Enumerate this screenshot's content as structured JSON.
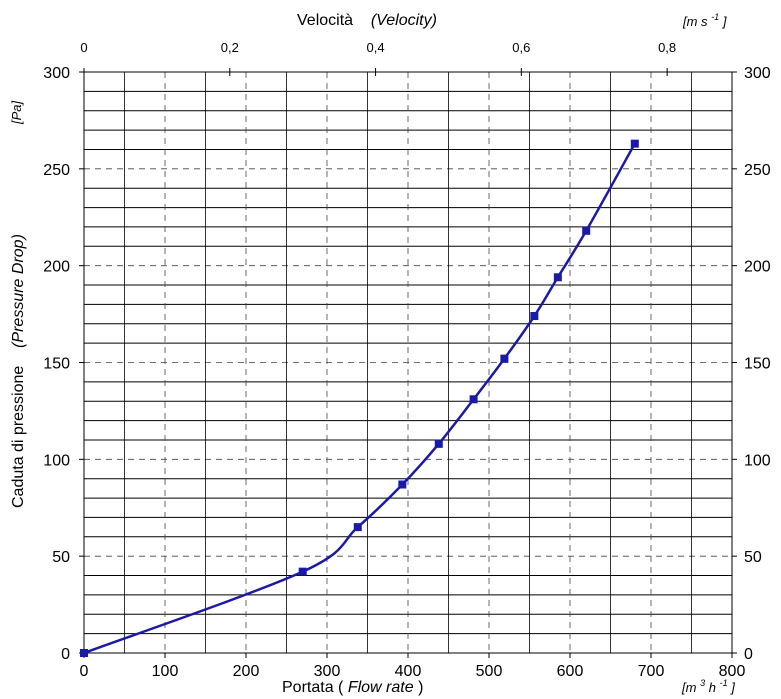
{
  "chart_data": {
    "type": "scatter",
    "title": "",
    "top_axis": {
      "label_plain": "Velocità",
      "label_italic": "(Velocity)",
      "unit": "[m s",
      "unit_exp": "-1",
      "unit_close": "]",
      "ticks": [
        0,
        0.2,
        0.4,
        0.6,
        0.8
      ],
      "tick_labels": [
        "0",
        "0,2",
        "0,4",
        "0,6",
        "0,8"
      ],
      "range": [
        0,
        0.889
      ]
    },
    "bottom_axis": {
      "label_plain": "Portata",
      "label_italic": "Flow rate",
      "unit_m": "[m",
      "unit_m_exp": "3",
      "unit_h": " h",
      "unit_h_exp": "-1",
      "unit_close": "]",
      "ticks": [
        0,
        100,
        200,
        300,
        400,
        500,
        600,
        700,
        800
      ],
      "tick_labels": [
        "0",
        "100",
        "200",
        "300",
        "400",
        "500",
        "600",
        "700",
        "800"
      ],
      "range": [
        0,
        800
      ]
    },
    "left_axis": {
      "label_plain": "Caduta di pressione",
      "label_italic": "(Pressure Drop)",
      "unit": "[Pa]",
      "ticks": [
        0,
        50,
        100,
        150,
        200,
        250,
        300
      ],
      "tick_labels": [
        "0",
        "50",
        "100",
        "150",
        "200",
        "250",
        "300"
      ],
      "range": [
        0,
        300
      ]
    },
    "right_axis": {
      "ticks": [
        0,
        50,
        100,
        150,
        200,
        250,
        300
      ],
      "tick_labels": [
        "0",
        "50",
        "100",
        "150",
        "200",
        "250",
        "300"
      ]
    },
    "grid": true,
    "series": [
      {
        "color": "#1a1aa6",
        "points": [
          {
            "x": 0,
            "y": 0
          },
          {
            "x": 270,
            "y": 42
          },
          {
            "x": 338,
            "y": 65
          },
          {
            "x": 393,
            "y": 87
          },
          {
            "x": 438,
            "y": 108
          },
          {
            "x": 481,
            "y": 131
          },
          {
            "x": 519,
            "y": 152
          },
          {
            "x": 556,
            "y": 174
          },
          {
            "x": 585,
            "y": 194
          },
          {
            "x": 620,
            "y": 218
          },
          {
            "x": 680,
            "y": 263
          }
        ]
      }
    ]
  }
}
